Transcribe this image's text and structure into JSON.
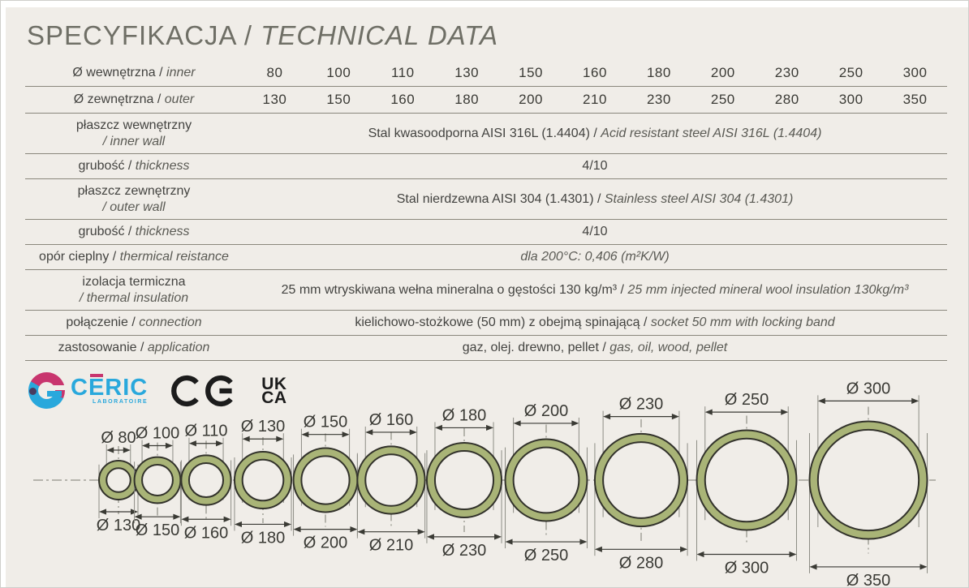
{
  "title": {
    "main": "SPECYFIKACJA / ",
    "italic": "TECHNICAL DATA"
  },
  "separator": "/",
  "diameter_symbol": "Ø",
  "colors": {
    "panel_bg": "#f0ede8",
    "ring_fill": "#a9b477",
    "ring_stroke": "#32322b",
    "line": "#8a877c",
    "dim": "#3a3a34",
    "ext": "#8d8d85",
    "centerline": "#7a7a71",
    "ceric_blue": "#29a8dc",
    "ceric_pink": "#c8356e",
    "ceric_dot": "#493c60",
    "mark_black": "#1c1c1c"
  },
  "table": {
    "inner_row": {
      "label_pl": "Ø wewnętrzna",
      "label_en": "inner",
      "values": [
        "80",
        "100",
        "110",
        "130",
        "150",
        "160",
        "180",
        "200",
        "230",
        "250",
        "300"
      ]
    },
    "outer_row": {
      "label_pl": "Ø zewnętrzna",
      "label_en": "outer",
      "values": [
        "130",
        "150",
        "160",
        "180",
        "200",
        "210",
        "230",
        "250",
        "280",
        "300",
        "350"
      ]
    },
    "rows": [
      {
        "id": "inner-wall",
        "two_line": true,
        "label_pl": "płaszcz wewnętrzny",
        "label_en": "/ inner wall",
        "value_pl": "Stal kwasoodporna AISI 316L (1.4404)",
        "value_en": "Acid resistant steel AISI 316L (1.4404)"
      },
      {
        "id": "inner-thickness",
        "two_line": false,
        "label_pl": "grubość",
        "label_en": "thickness",
        "value_pl": "4/10",
        "value_en": ""
      },
      {
        "id": "outer-wall",
        "two_line": true,
        "label_pl": "płaszcz zewnętrzny",
        "label_en": "/ outer wall",
        "value_pl": "Stal nierdzewna AISI 304 (1.4301)",
        "value_en": "Stainless steel AISI 304 (1.4301)"
      },
      {
        "id": "outer-thickness",
        "two_line": false,
        "label_pl": "grubość",
        "label_en": "thickness",
        "value_pl": "4/10",
        "value_en": ""
      },
      {
        "id": "thermal-resistance",
        "two_line": false,
        "label_pl": "opór cieplny",
        "label_en": "thermical reistance",
        "value_pl": "",
        "value_en": "dla 200°C: 0,406  (m²K/W)"
      },
      {
        "id": "thermal-insulation",
        "two_line": true,
        "label_pl": "izolacja termiczna",
        "label_en": "/ thermal insulation",
        "value_pl": "25 mm wtryskiwana wełna mineralna o gęstości 130 kg/m³",
        "value_en": "25 mm injected mineral wool insulation 130kg/m³"
      },
      {
        "id": "connection",
        "two_line": false,
        "label_pl": "połączenie",
        "label_en": "connection",
        "value_pl": "kielichowo-stożkowe (50 mm) z obejmą spinającą",
        "value_en": "socket 50 mm with locking band"
      },
      {
        "id": "application",
        "two_line": false,
        "label_pl": "zastosowanie",
        "label_en": "application",
        "value_pl": "gaz, olej. drewno, pellet",
        "value_en": "gas, oil, wood, pellet"
      }
    ]
  },
  "logos": {
    "ceric": {
      "part1": "C",
      "part2": "E",
      "part3": "RIC",
      "sub": "LABORATOIRE"
    },
    "ukca": {
      "line1": "UK",
      "line2": "CA"
    }
  },
  "diagram": {
    "pipes": [
      {
        "inner": 80,
        "outer": 130
      },
      {
        "inner": 100,
        "outer": 150
      },
      {
        "inner": 110,
        "outer": 160
      },
      {
        "inner": 130,
        "outer": 180
      },
      {
        "inner": 150,
        "outer": 200
      },
      {
        "inner": 160,
        "outer": 210
      },
      {
        "inner": 180,
        "outer": 230
      },
      {
        "inner": 200,
        "outer": 250
      },
      {
        "inner": 230,
        "outer": 280
      },
      {
        "inner": 250,
        "outer": 300
      },
      {
        "inner": 300,
        "outer": 350
      }
    ]
  }
}
